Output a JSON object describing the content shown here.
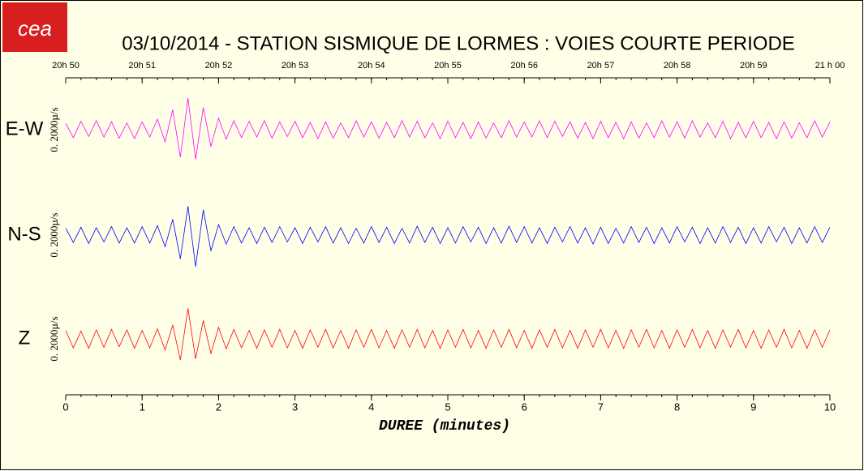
{
  "logo": "cea",
  "chart_data": {
    "type": "seismogram",
    "title": "03/10/2014  -  STATION SISMIQUE DE LORMES : VOIES COURTE PERIODE",
    "top_labels": [
      "20h 50",
      "20h 51",
      "20h 52",
      "20h 53",
      "20h 54",
      "20h 55",
      "20h 56",
      "20h 57",
      "20h 58",
      "20h 59",
      "21 h 00"
    ],
    "xlabel": "DUREE (minutes)",
    "xlim": [
      0,
      10
    ],
    "xticks": [
      0,
      1,
      2,
      3,
      4,
      5,
      6,
      7,
      8,
      9,
      10
    ],
    "ylim": [
      -1000,
      1000
    ],
    "x": [
      0,
      0.1,
      0.2,
      0.3,
      0.4,
      0.5,
      0.6,
      0.7,
      0.8,
      0.9,
      1,
      1.1,
      1.2,
      1.3,
      1.4,
      1.5,
      1.6,
      1.7,
      1.8,
      1.9,
      2,
      2.1,
      2.2,
      2.3,
      2.4,
      2.5,
      2.6,
      2.7,
      2.8,
      2.9,
      3,
      3.1,
      3.2,
      3.3,
      3.4,
      3.5,
      3.6,
      3.7,
      3.8,
      3.9,
      4,
      4.1,
      4.2,
      4.3,
      4.4,
      4.5,
      4.6,
      4.7,
      4.8,
      4.9,
      5,
      5.1,
      5.2,
      5.3,
      5.4,
      5.5,
      5.6,
      5.7,
      5.8,
      5.9,
      6,
      6.1,
      6.2,
      6.3,
      6.4,
      6.5,
      6.6,
      6.7,
      6.8,
      6.9,
      7,
      7.1,
      7.2,
      7.3,
      7.4,
      7.5,
      7.6,
      7.7,
      7.8,
      7.9,
      8,
      8.1,
      8.2,
      8.3,
      8.4,
      8.5,
      8.6,
      8.7,
      8.8,
      8.9,
      9,
      9.1,
      9.2,
      9.3,
      9.4,
      9.5,
      9.6,
      9.7,
      9.8,
      9.9,
      10
    ],
    "series": [
      {
        "name": "E-W",
        "color": "#ff00ff",
        "scale_label": "0. 2000µ/s",
        "values": [
          120,
          -150,
          160,
          -130,
          170,
          -140,
          150,
          -160,
          130,
          -170,
          150,
          -140,
          200,
          -230,
          380,
          -520,
          600,
          -560,
          420,
          -320,
          220,
          -180,
          170,
          -150,
          160,
          -140,
          170,
          -160,
          150,
          -130,
          160,
          -150,
          140,
          -170,
          150,
          -160,
          130,
          -150,
          170,
          -140,
          150,
          -160,
          140,
          -150,
          170,
          -140,
          160,
          -150,
          130,
          -170,
          160,
          -150,
          140,
          -170,
          150,
          -160,
          130,
          -150,
          170,
          -140,
          150,
          -140,
          170,
          -150,
          160,
          -130,
          150,
          -160,
          140,
          -170,
          160,
          -150,
          140,
          -170,
          150,
          -160,
          130,
          -150,
          170,
          -140,
          150,
          -160,
          170,
          -140,
          130,
          -150,
          160,
          -170,
          140,
          -150,
          160,
          -150,
          140,
          -170,
          150,
          -160,
          130,
          -150,
          170,
          -140,
          150
        ]
      },
      {
        "name": "N-S",
        "color": "#0000ff",
        "scale_label": "0. 2000µ/s",
        "values": [
          130,
          -140,
          150,
          -160,
          140,
          -130,
          160,
          -150,
          140,
          -150,
          160,
          -150,
          180,
          -220,
          300,
          -450,
          550,
          -600,
          480,
          -300,
          200,
          -170,
          160,
          -150,
          140,
          -160,
          150,
          -140,
          160,
          -130,
          140,
          -160,
          150,
          -130,
          160,
          -150,
          140,
          -160,
          130,
          -150,
          160,
          -140,
          150,
          -160,
          130,
          -150,
          170,
          -140,
          150,
          -160,
          140,
          -150,
          160,
          -130,
          150,
          -160,
          140,
          -150,
          170,
          -140,
          160,
          -150,
          140,
          -160,
          150,
          -130,
          160,
          -150,
          140,
          -170,
          150,
          -160,
          130,
          -150,
          160,
          -140,
          150,
          -160,
          140,
          -150,
          160,
          -130,
          150,
          -160,
          140,
          -150,
          160,
          -140,
          150,
          -160,
          140,
          -150,
          160,
          -130,
          150,
          -160,
          140,
          -150,
          160,
          -140,
          150
        ]
      },
      {
        "name": "Z",
        "color": "#ff0000",
        "scale_label": "0. 2000µ/s",
        "values": [
          160,
          -170,
          150,
          -180,
          170,
          -160,
          180,
          -150,
          170,
          -180,
          160,
          -170,
          190,
          -210,
          260,
          -400,
          580,
          -380,
          350,
          -280,
          220,
          -190,
          180,
          -170,
          160,
          -180,
          170,
          -160,
          180,
          -170,
          160,
          -180,
          170,
          -160,
          180,
          -170,
          160,
          -180,
          170,
          -160,
          180,
          -170,
          160,
          -180,
          170,
          -160,
          180,
          -170,
          160,
          -180,
          170,
          -160,
          180,
          -170,
          160,
          -180,
          170,
          -160,
          180,
          -170,
          160,
          -180,
          170,
          -160,
          180,
          -170,
          160,
          -180,
          170,
          -160,
          180,
          -170,
          160,
          -180,
          170,
          -160,
          180,
          -170,
          160,
          -180,
          170,
          -160,
          180,
          -170,
          160,
          -180,
          170,
          -160,
          180,
          -170,
          160,
          -180,
          170,
          -160,
          180,
          -170,
          160,
          -180,
          170,
          -160,
          170
        ]
      }
    ]
  }
}
